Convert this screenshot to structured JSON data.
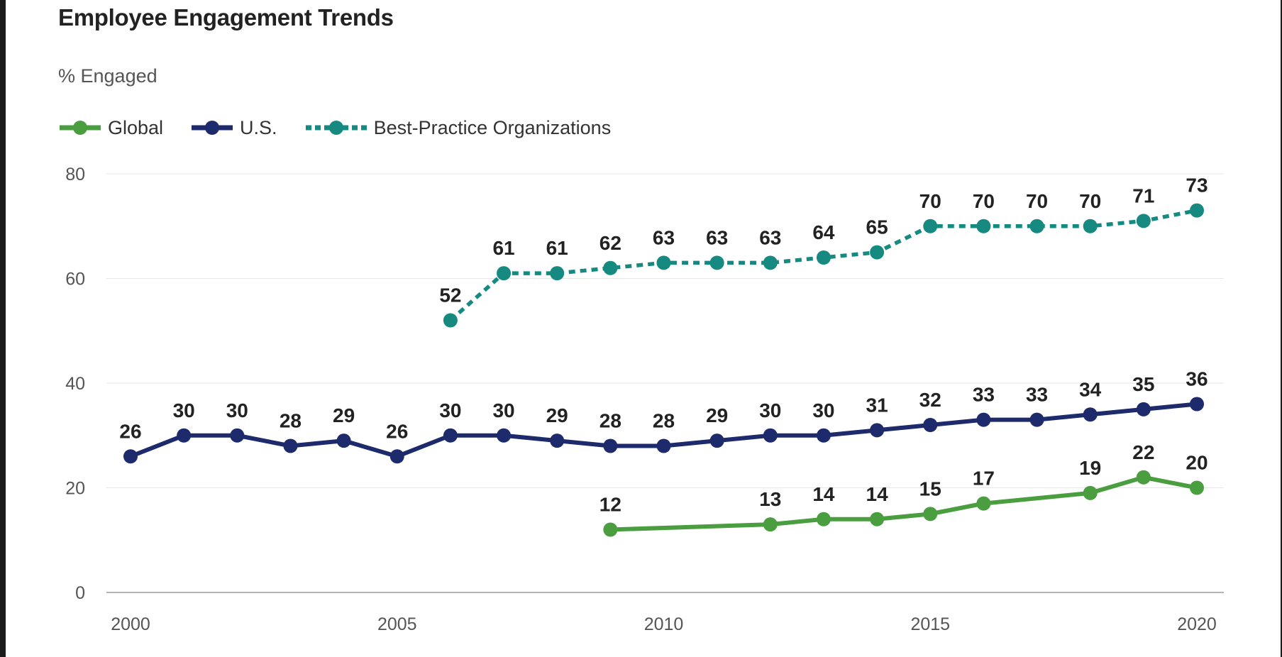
{
  "chart_data": {
    "type": "line",
    "title": "Employee Engagement Trends",
    "subtitle": "% Engaged",
    "xlabel": "",
    "ylabel": "",
    "x_ticks": [
      2000,
      2005,
      2010,
      2015,
      2020
    ],
    "y_ticks": [
      0,
      20,
      40,
      60,
      80
    ],
    "xlim": [
      2000,
      2020
    ],
    "ylim": [
      0,
      80
    ],
    "grid": true,
    "legend_placement": "top-left",
    "series": [
      {
        "name": "Global",
        "color": "#4a9e3f",
        "style": "solid",
        "points": [
          [
            2009,
            12
          ],
          [
            2012,
            13
          ],
          [
            2013,
            14
          ],
          [
            2014,
            14
          ],
          [
            2015,
            15
          ],
          [
            2016,
            17
          ],
          [
            2018,
            19
          ],
          [
            2019,
            22
          ],
          [
            2020,
            20
          ]
        ]
      },
      {
        "name": "U.S.",
        "color": "#1d2a6b",
        "style": "solid",
        "points": [
          [
            2000,
            26
          ],
          [
            2001,
            30
          ],
          [
            2002,
            30
          ],
          [
            2003,
            28
          ],
          [
            2004,
            29
          ],
          [
            2005,
            26
          ],
          [
            2006,
            30
          ],
          [
            2007,
            30
          ],
          [
            2008,
            29
          ],
          [
            2009,
            28
          ],
          [
            2010,
            28
          ],
          [
            2011,
            29
          ],
          [
            2012,
            30
          ],
          [
            2013,
            30
          ],
          [
            2014,
            31
          ],
          [
            2015,
            32
          ],
          [
            2016,
            33
          ],
          [
            2017,
            33
          ],
          [
            2018,
            34
          ],
          [
            2019,
            35
          ],
          [
            2020,
            36
          ]
        ]
      },
      {
        "name": "Best-Practice Organizations",
        "color": "#168a80",
        "style": "dotted",
        "points": [
          [
            2006,
            52
          ],
          [
            2007,
            61
          ],
          [
            2008,
            61
          ],
          [
            2009,
            62
          ],
          [
            2010,
            63
          ],
          [
            2011,
            63
          ],
          [
            2012,
            63
          ],
          [
            2013,
            64
          ],
          [
            2014,
            65
          ],
          [
            2015,
            70
          ],
          [
            2016,
            70
          ],
          [
            2017,
            70
          ],
          [
            2018,
            70
          ],
          [
            2019,
            71
          ],
          [
            2020,
            73
          ]
        ]
      }
    ]
  }
}
